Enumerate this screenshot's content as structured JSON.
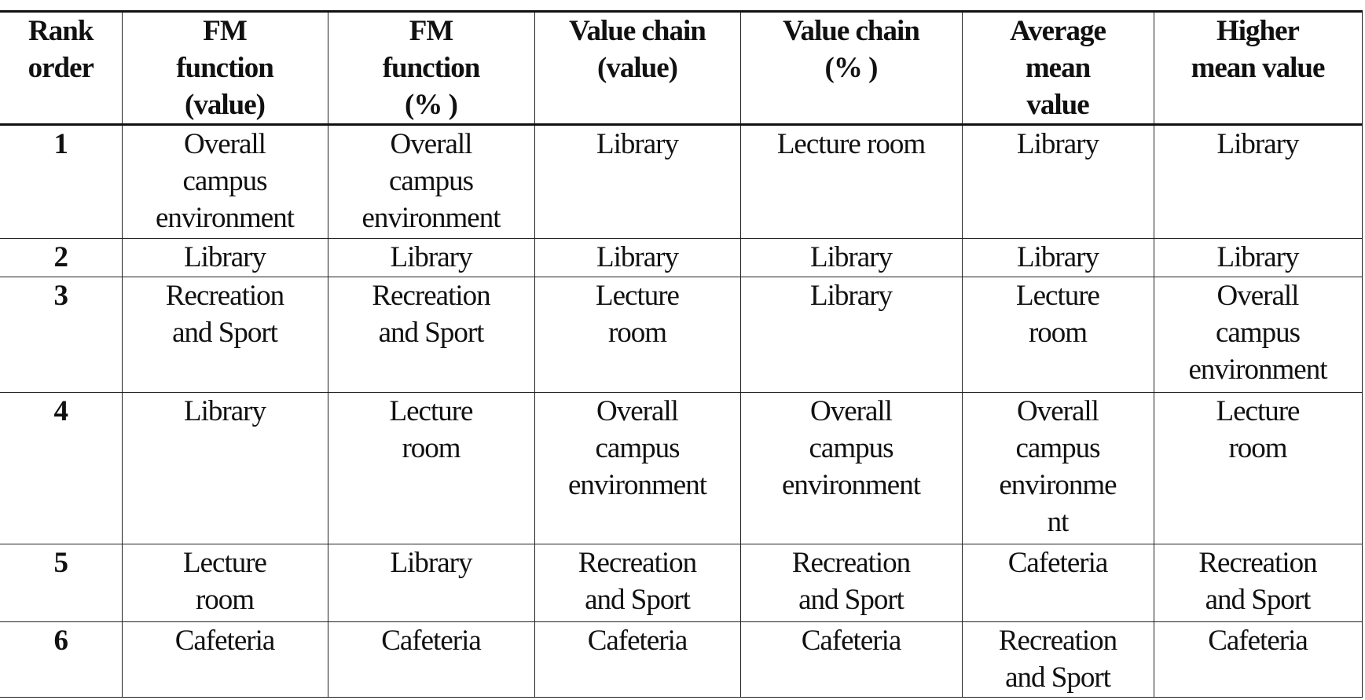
{
  "table": {
    "headers": [
      "Rank\norder",
      "FM\nfunction\n(value)",
      "FM\nfunction\n(% )",
      "Value chain\n(value)",
      "Value chain\n(% )",
      "Average\nmean\nvalue",
      "Higher\nmean value"
    ],
    "rows": [
      [
        "1",
        "Overall\ncampus\nenvironment",
        "Overall\ncampus\nenvironment",
        "Library",
        "Lecture room",
        "Library",
        "Library"
      ],
      [
        "2",
        "Library",
        "Library",
        "Library",
        "Library",
        "Library",
        "Library"
      ],
      [
        "3",
        "Recreation\nand Sport",
        "Recreation\nand Sport",
        "Lecture\nroom",
        "Library",
        "Lecture\nroom",
        "Overall\ncampus\nenvironment"
      ],
      [
        "4",
        "Library",
        "Lecture\nroom",
        "Overall\ncampus\nenvironment",
        "Overall\ncampus\nenvironment",
        "Overall\ncampus\nenvironme\nnt",
        "Lecture\nroom"
      ],
      [
        "5",
        "Lecture\nroom",
        "Library",
        "Recreation\nand Sport",
        "Recreation\nand Sport",
        "Cafeteria",
        "Recreation\nand Sport"
      ],
      [
        "6",
        "Cafeteria",
        "Cafeteria",
        "Cafeteria",
        "Cafeteria",
        "Recreation\nand Sport",
        "Cafeteria"
      ]
    ]
  }
}
